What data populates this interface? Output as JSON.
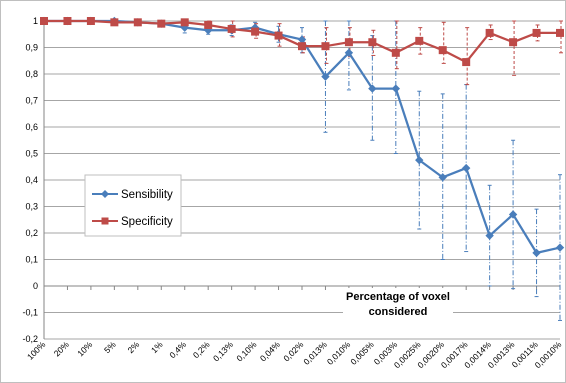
{
  "chart_data": {
    "type": "line",
    "categories": [
      "100%",
      "20%",
      "10%",
      "5%",
      "2%",
      "1%",
      "0,4%",
      "0,2%",
      "0,13%",
      "0,10%",
      "0,04%",
      "0,02%",
      "0,013%",
      "0,010%",
      "0,005%",
      "0,003%",
      "0,0025%",
      "0,0020%",
      "0,0017%",
      "0,0014%",
      "0,0013%",
      "0,0011%",
      "0,0010%"
    ],
    "xlabel": "Percentage of voxel considered",
    "ylabel": "",
    "ylim": [
      -0.2,
      1
    ],
    "yticks": [
      -0.2,
      -0.1,
      0,
      0.1,
      0.2,
      0.3,
      0.4,
      0.5,
      0.6,
      0.7,
      0.8,
      0.9,
      1
    ],
    "ytick_labels": [
      "-0,2",
      "-0,1",
      "0",
      "0,1",
      "0,2",
      "0,3",
      "0,4",
      "0,5",
      "0,6",
      "0,7",
      "0,8",
      "0,9",
      "1"
    ],
    "grid": true,
    "legend_position": "left-center",
    "series": [
      {
        "name": "Sensibility",
        "color": "#4a7ebb",
        "marker": "diamond",
        "values": [
          1,
          1,
          1,
          1,
          0.995,
          0.99,
          0.975,
          0.965,
          0.965,
          0.975,
          0.95,
          0.93,
          0.79,
          0.88,
          0.745,
          0.745,
          0.475,
          0.41,
          0.445,
          0.19,
          0.27,
          0.125,
          0.145
        ],
        "err_low": [
          1,
          1,
          1,
          1,
          0.99,
          0.98,
          0.955,
          0.95,
          0.945,
          0.955,
          0.92,
          0.88,
          0.58,
          0.74,
          0.55,
          0.5,
          0.215,
          0.1,
          0.13,
          0.0,
          -0.01,
          -0.04,
          -0.13
        ],
        "err_high": [
          1,
          1,
          1,
          1,
          1,
          1,
          0.995,
          0.985,
          0.985,
          0.995,
          0.98,
          0.975,
          1.0,
          1.0,
          0.945,
          1.0,
          0.735,
          0.725,
          0.76,
          0.38,
          0.55,
          0.29,
          0.42
        ]
      },
      {
        "name": "Specificity",
        "color": "#be4b48",
        "marker": "square",
        "values": [
          1,
          1,
          1,
          0.995,
          0.995,
          0.99,
          0.995,
          0.985,
          0.97,
          0.96,
          0.945,
          0.905,
          0.905,
          0.92,
          0.92,
          0.88,
          0.925,
          0.89,
          0.845,
          0.955,
          0.92,
          0.955,
          0.955
        ],
        "err_low": [
          1,
          1,
          1,
          0.99,
          0.99,
          0.98,
          0.985,
          0.965,
          0.94,
          0.935,
          0.905,
          0.88,
          0.84,
          0.865,
          0.87,
          0.82,
          0.875,
          0.84,
          0.76,
          0.93,
          0.795,
          0.925,
          0.88
        ],
        "err_high": [
          1,
          1,
          1,
          1,
          1,
          1,
          1,
          1,
          1,
          0.99,
          0.99,
          0.94,
          0.975,
          0.975,
          0.965,
          1.0,
          0.975,
          0.995,
          0.975,
          0.985,
          1.0,
          0.985,
          1.0
        ]
      }
    ]
  }
}
